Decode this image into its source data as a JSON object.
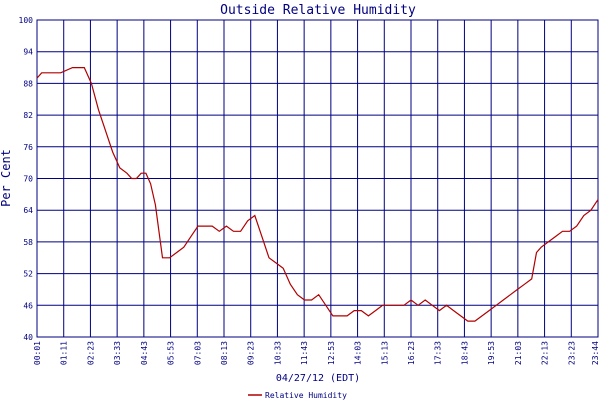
{
  "chart_data": {
    "type": "line",
    "title": "Outside Relative Humidity",
    "xlabel": "04/27/12 (EDT)",
    "ylabel": "Per Cent",
    "ylim": [
      40,
      100
    ],
    "y_ticks": [
      "40",
      "46",
      "52",
      "58",
      "64",
      "70",
      "76",
      "82",
      "88",
      "94",
      "100"
    ],
    "x_ticks": [
      "00:01",
      "01:11",
      "02:23",
      "03:33",
      "04:43",
      "05:53",
      "07:03",
      "08:13",
      "09:23",
      "10:33",
      "11:43",
      "12:53",
      "14:03",
      "15:13",
      "16:23",
      "17:33",
      "18:43",
      "19:53",
      "21:03",
      "22:13",
      "23:23",
      "23:44"
    ],
    "grid": true,
    "legend": "bottom-center",
    "colors": {
      "grid": "#000080",
      "line": "#b00000",
      "text": "#000080"
    },
    "series": [
      {
        "name": "Relative Humidity",
        "x": [
          0,
          0.2,
          0.5,
          0.8,
          1.0,
          1.5,
          1.8,
          2.0,
          2.3,
          2.6,
          2.9,
          3.2,
          3.5,
          3.8,
          4.0,
          4.2,
          4.4,
          4.6,
          4.8,
          5.0,
          5.3,
          5.6,
          5.9,
          6.2,
          6.5,
          6.8,
          7.1,
          7.4,
          7.7,
          8.0,
          8.3,
          8.6,
          8.9,
          9.2,
          9.5,
          9.8,
          10.1,
          10.4,
          10.7,
          11.0,
          11.3,
          11.6,
          11.9,
          12.2,
          12.5,
          12.8,
          13.1,
          13.4,
          13.7,
          14.0,
          14.3,
          14.6,
          14.9,
          15.2,
          15.5,
          15.8,
          16.1,
          16.4,
          16.7,
          17.0,
          17.3,
          17.6,
          17.9,
          18.2,
          18.5,
          18.8,
          19.1,
          19.4,
          19.7,
          20.0,
          20.3,
          20.6,
          20.9,
          21.1,
          21.3,
          21.6,
          21.9,
          22.2,
          22.5,
          22.8,
          23.1,
          23.4,
          23.7
        ],
        "values": [
          89,
          90,
          90,
          90,
          90,
          91,
          91,
          91,
          88,
          83,
          79,
          75,
          72,
          71,
          70,
          70,
          71,
          71,
          69,
          65,
          55,
          55,
          56,
          57,
          59,
          61,
          61,
          61,
          60,
          61,
          60,
          60,
          62,
          63,
          59,
          55,
          54,
          53,
          50,
          48,
          47,
          47,
          48,
          46,
          44,
          44,
          44,
          45,
          45,
          44,
          45,
          46,
          46,
          46,
          46,
          47,
          46,
          47,
          46,
          45,
          46,
          45,
          44,
          43,
          43,
          44,
          45,
          46,
          47,
          48,
          49,
          50,
          51,
          56,
          57,
          58,
          59,
          60,
          60,
          61,
          63,
          64,
          66
        ]
      }
    ]
  }
}
